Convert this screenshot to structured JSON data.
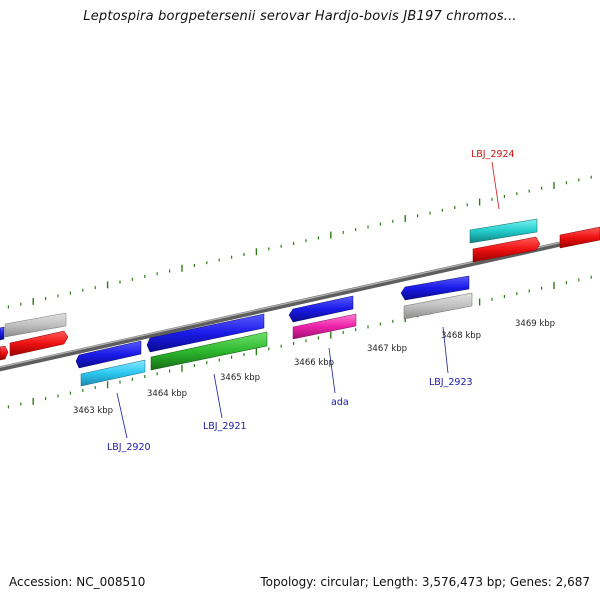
{
  "title": "Leptospira borgpetersenii serovar Hardjo-bovis JB197 chromos...",
  "footer": {
    "accession": "Accession: NC_008510",
    "summary": "Topology: circular; Length: 3,576,473 bp; Genes: 2,687"
  },
  "colors": {
    "backbone": "#7a7a7a",
    "tick": "#2e7d1a",
    "label_blue": "#1a1aa8",
    "label_red": "#cc1111"
  },
  "ticks": [
    {
      "label": "3463 kbp"
    },
    {
      "label": "3464 kbp"
    },
    {
      "label": "3465 kbp"
    },
    {
      "label": "3466 kbp"
    },
    {
      "label": "3467 kbp"
    },
    {
      "label": "3468 kbp"
    },
    {
      "label": "3469 kbp"
    }
  ],
  "gene_labels": [
    {
      "text": "LBJ_2920"
    },
    {
      "text": "LBJ_2921"
    },
    {
      "text": "ada"
    },
    {
      "text": "LBJ_2923"
    },
    {
      "text": "LBJ_2924"
    }
  ]
}
